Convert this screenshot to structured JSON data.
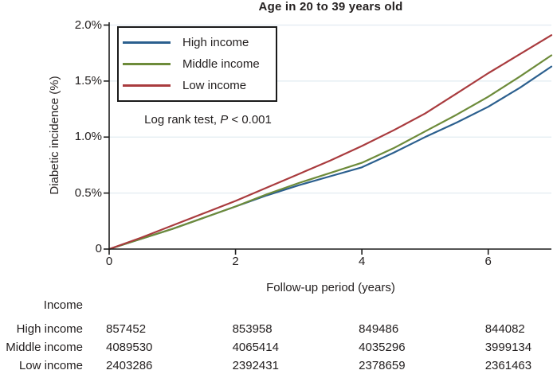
{
  "title": "Age in 20 to 39 years old",
  "note": {
    "prefix": "Log rank test, ",
    "p": "P",
    "suffix": " < 0.001"
  },
  "colors": {
    "grid": "#e2ebf1",
    "axis": "#1c1c1c",
    "text": "#221e1e",
    "high_income": "#2b5f8e",
    "middle_income": "#6d8b3a",
    "low_income": "#a93b3e"
  },
  "chart_data": {
    "type": "line",
    "title": "Age in 20 to 39 years old",
    "xlabel": "Follow-up period (years)",
    "ylabel": "Diabetic incidence (%)",
    "annotation": "Log rank test, P < 0.001",
    "grid": "horizontal",
    "legend_position": "top-left",
    "xlim": [
      0,
      7
    ],
    "ylim": [
      0,
      2.0
    ],
    "x": [
      0,
      0.5,
      1,
      1.5,
      2,
      2.5,
      3,
      3.5,
      4,
      4.5,
      5,
      5.5,
      6,
      6.5,
      7
    ],
    "series": [
      {
        "name": "High income",
        "color": "#2b5f8e",
        "values": [
          0,
          0.09,
          0.18,
          0.28,
          0.38,
          0.48,
          0.57,
          0.65,
          0.73,
          0.86,
          1.0,
          1.13,
          1.27,
          1.44,
          1.63
        ]
      },
      {
        "name": "Middle income",
        "color": "#6d8b3a",
        "values": [
          0,
          0.09,
          0.18,
          0.28,
          0.38,
          0.49,
          0.59,
          0.68,
          0.77,
          0.9,
          1.05,
          1.2,
          1.36,
          1.54,
          1.73
        ]
      },
      {
        "name": "Low income",
        "color": "#a93b3e",
        "values": [
          0,
          0.1,
          0.21,
          0.32,
          0.43,
          0.55,
          0.67,
          0.79,
          0.92,
          1.06,
          1.21,
          1.39,
          1.57,
          1.74,
          1.91
        ]
      }
    ],
    "x_ticks": [
      {
        "value": 0,
        "label": "0"
      },
      {
        "value": 2,
        "label": "2"
      },
      {
        "value": 4,
        "label": "4"
      },
      {
        "value": 6,
        "label": "6"
      }
    ],
    "y_ticks": [
      {
        "value": 0,
        "label": "0"
      },
      {
        "value": 0.5,
        "label": "0.5%"
      },
      {
        "value": 1.0,
        "label": "1.0%"
      },
      {
        "value": 1.5,
        "label": "1.5%"
      },
      {
        "value": 2.0,
        "label": "2.0%"
      }
    ]
  },
  "risk_table": {
    "header": "Income",
    "columns": [
      "0",
      "2",
      "4",
      "6"
    ],
    "rows": [
      {
        "label": "High income",
        "values": [
          "857452",
          "853958",
          "849486",
          "844082"
        ]
      },
      {
        "label": "Middle income",
        "values": [
          "4089530",
          "4065414",
          "4035296",
          "3999134"
        ]
      },
      {
        "label": "Low income",
        "values": [
          "2403286",
          "2392431",
          "2378659",
          "2361463"
        ]
      }
    ]
  }
}
